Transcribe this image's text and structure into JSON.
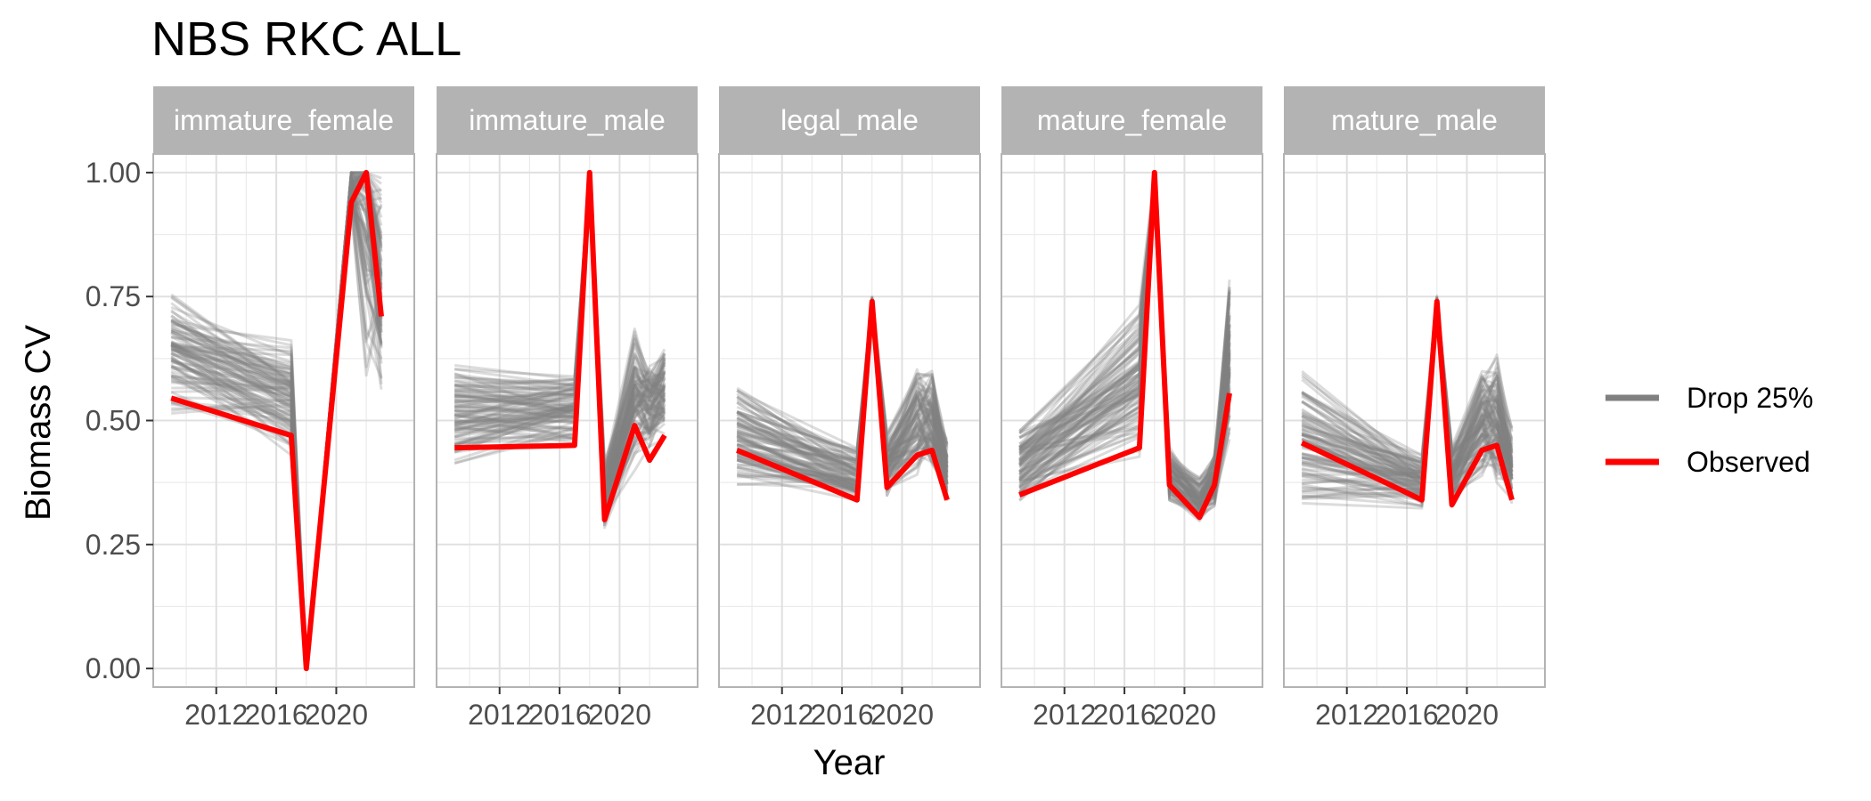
{
  "chart_data": {
    "type": "line",
    "title": "NBS RKC ALL",
    "xlabel": "Year",
    "ylabel": "Biomass CV",
    "xlim": [
      2007.8,
      2025.2
    ],
    "ylim": [
      -0.0375,
      1.0375
    ],
    "x_ticks": [
      2012,
      2016,
      2020
    ],
    "x_tick_labels": [
      "2012",
      "2016",
      "2020"
    ],
    "y_ticks": [
      0,
      0.25,
      0.5,
      0.75,
      1.0
    ],
    "y_tick_labels": [
      "0.00",
      "0.25",
      "0.50",
      "0.75",
      "1.00"
    ],
    "grid": true,
    "legend": {
      "placement": "right",
      "entries": [
        {
          "label": "Drop 25%",
          "color": "#808080"
        },
        {
          "label": "Observed",
          "color": "#ff0000"
        }
      ]
    },
    "colors": {
      "strip_background": "#b3b3b3",
      "panel_border": "#b3b3b3",
      "grid": "#ebebeb",
      "drop": "#808080",
      "observed": "#ff0000"
    },
    "drop_series_per_panel": 100,
    "panels": [
      {
        "label": "immature_female",
        "observed": {
          "x": [
            2009,
            2017,
            2018,
            2021,
            2022,
            2023
          ],
          "y": [
            0.545,
            0.47,
            0.0,
            0.94,
            1.0,
            0.71
          ]
        },
        "drop": {
          "center": [
            0.64,
            0.55,
            0.0,
            0.97,
            0.98,
            0.78
          ],
          "spread": [
            0.12,
            0.11,
            0.0,
            0.05,
            0.35,
            0.2
          ]
        }
      },
      {
        "label": "immature_male",
        "observed": {
          "x": [
            2009,
            2017,
            2018,
            2019,
            2021,
            2022,
            2023
          ],
          "y": [
            0.445,
            0.45,
            1.0,
            0.3,
            0.49,
            0.42,
            0.47
          ]
        },
        "drop": {
          "center": [
            0.51,
            0.52,
            0.98,
            0.35,
            0.55,
            0.53,
            0.56
          ],
          "spread": [
            0.09,
            0.06,
            0.03,
            0.07,
            0.13,
            0.08,
            0.09
          ]
        }
      },
      {
        "label": "legal_male",
        "observed": {
          "x": [
            2009,
            2017,
            2018,
            2019,
            2021,
            2022,
            2023
          ],
          "y": [
            0.44,
            0.34,
            0.74,
            0.365,
            0.43,
            0.44,
            0.34
          ]
        },
        "drop": {
          "center": [
            0.47,
            0.39,
            0.73,
            0.41,
            0.5,
            0.5,
            0.4
          ],
          "spread": [
            0.1,
            0.05,
            0.02,
            0.06,
            0.1,
            0.1,
            0.06
          ]
        }
      },
      {
        "label": "mature_female",
        "observed": {
          "x": [
            2009,
            2017,
            2018,
            2019,
            2021,
            2022,
            2023
          ],
          "y": [
            0.35,
            0.445,
            1.0,
            0.37,
            0.305,
            0.37,
            0.555
          ]
        },
        "drop": {
          "center": [
            0.41,
            0.58,
            0.97,
            0.39,
            0.34,
            0.38,
            0.62
          ],
          "spread": [
            0.07,
            0.14,
            0.03,
            0.05,
            0.04,
            0.05,
            0.14
          ]
        }
      },
      {
        "label": "mature_male",
        "observed": {
          "x": [
            2009,
            2017,
            2018,
            2019,
            2021,
            2022,
            2023
          ],
          "y": [
            0.455,
            0.34,
            0.74,
            0.33,
            0.44,
            0.45,
            0.34
          ]
        },
        "drop": {
          "center": [
            0.46,
            0.38,
            0.73,
            0.39,
            0.5,
            0.5,
            0.41
          ],
          "spread": [
            0.12,
            0.05,
            0.02,
            0.06,
            0.1,
            0.12,
            0.07
          ]
        }
      }
    ]
  }
}
